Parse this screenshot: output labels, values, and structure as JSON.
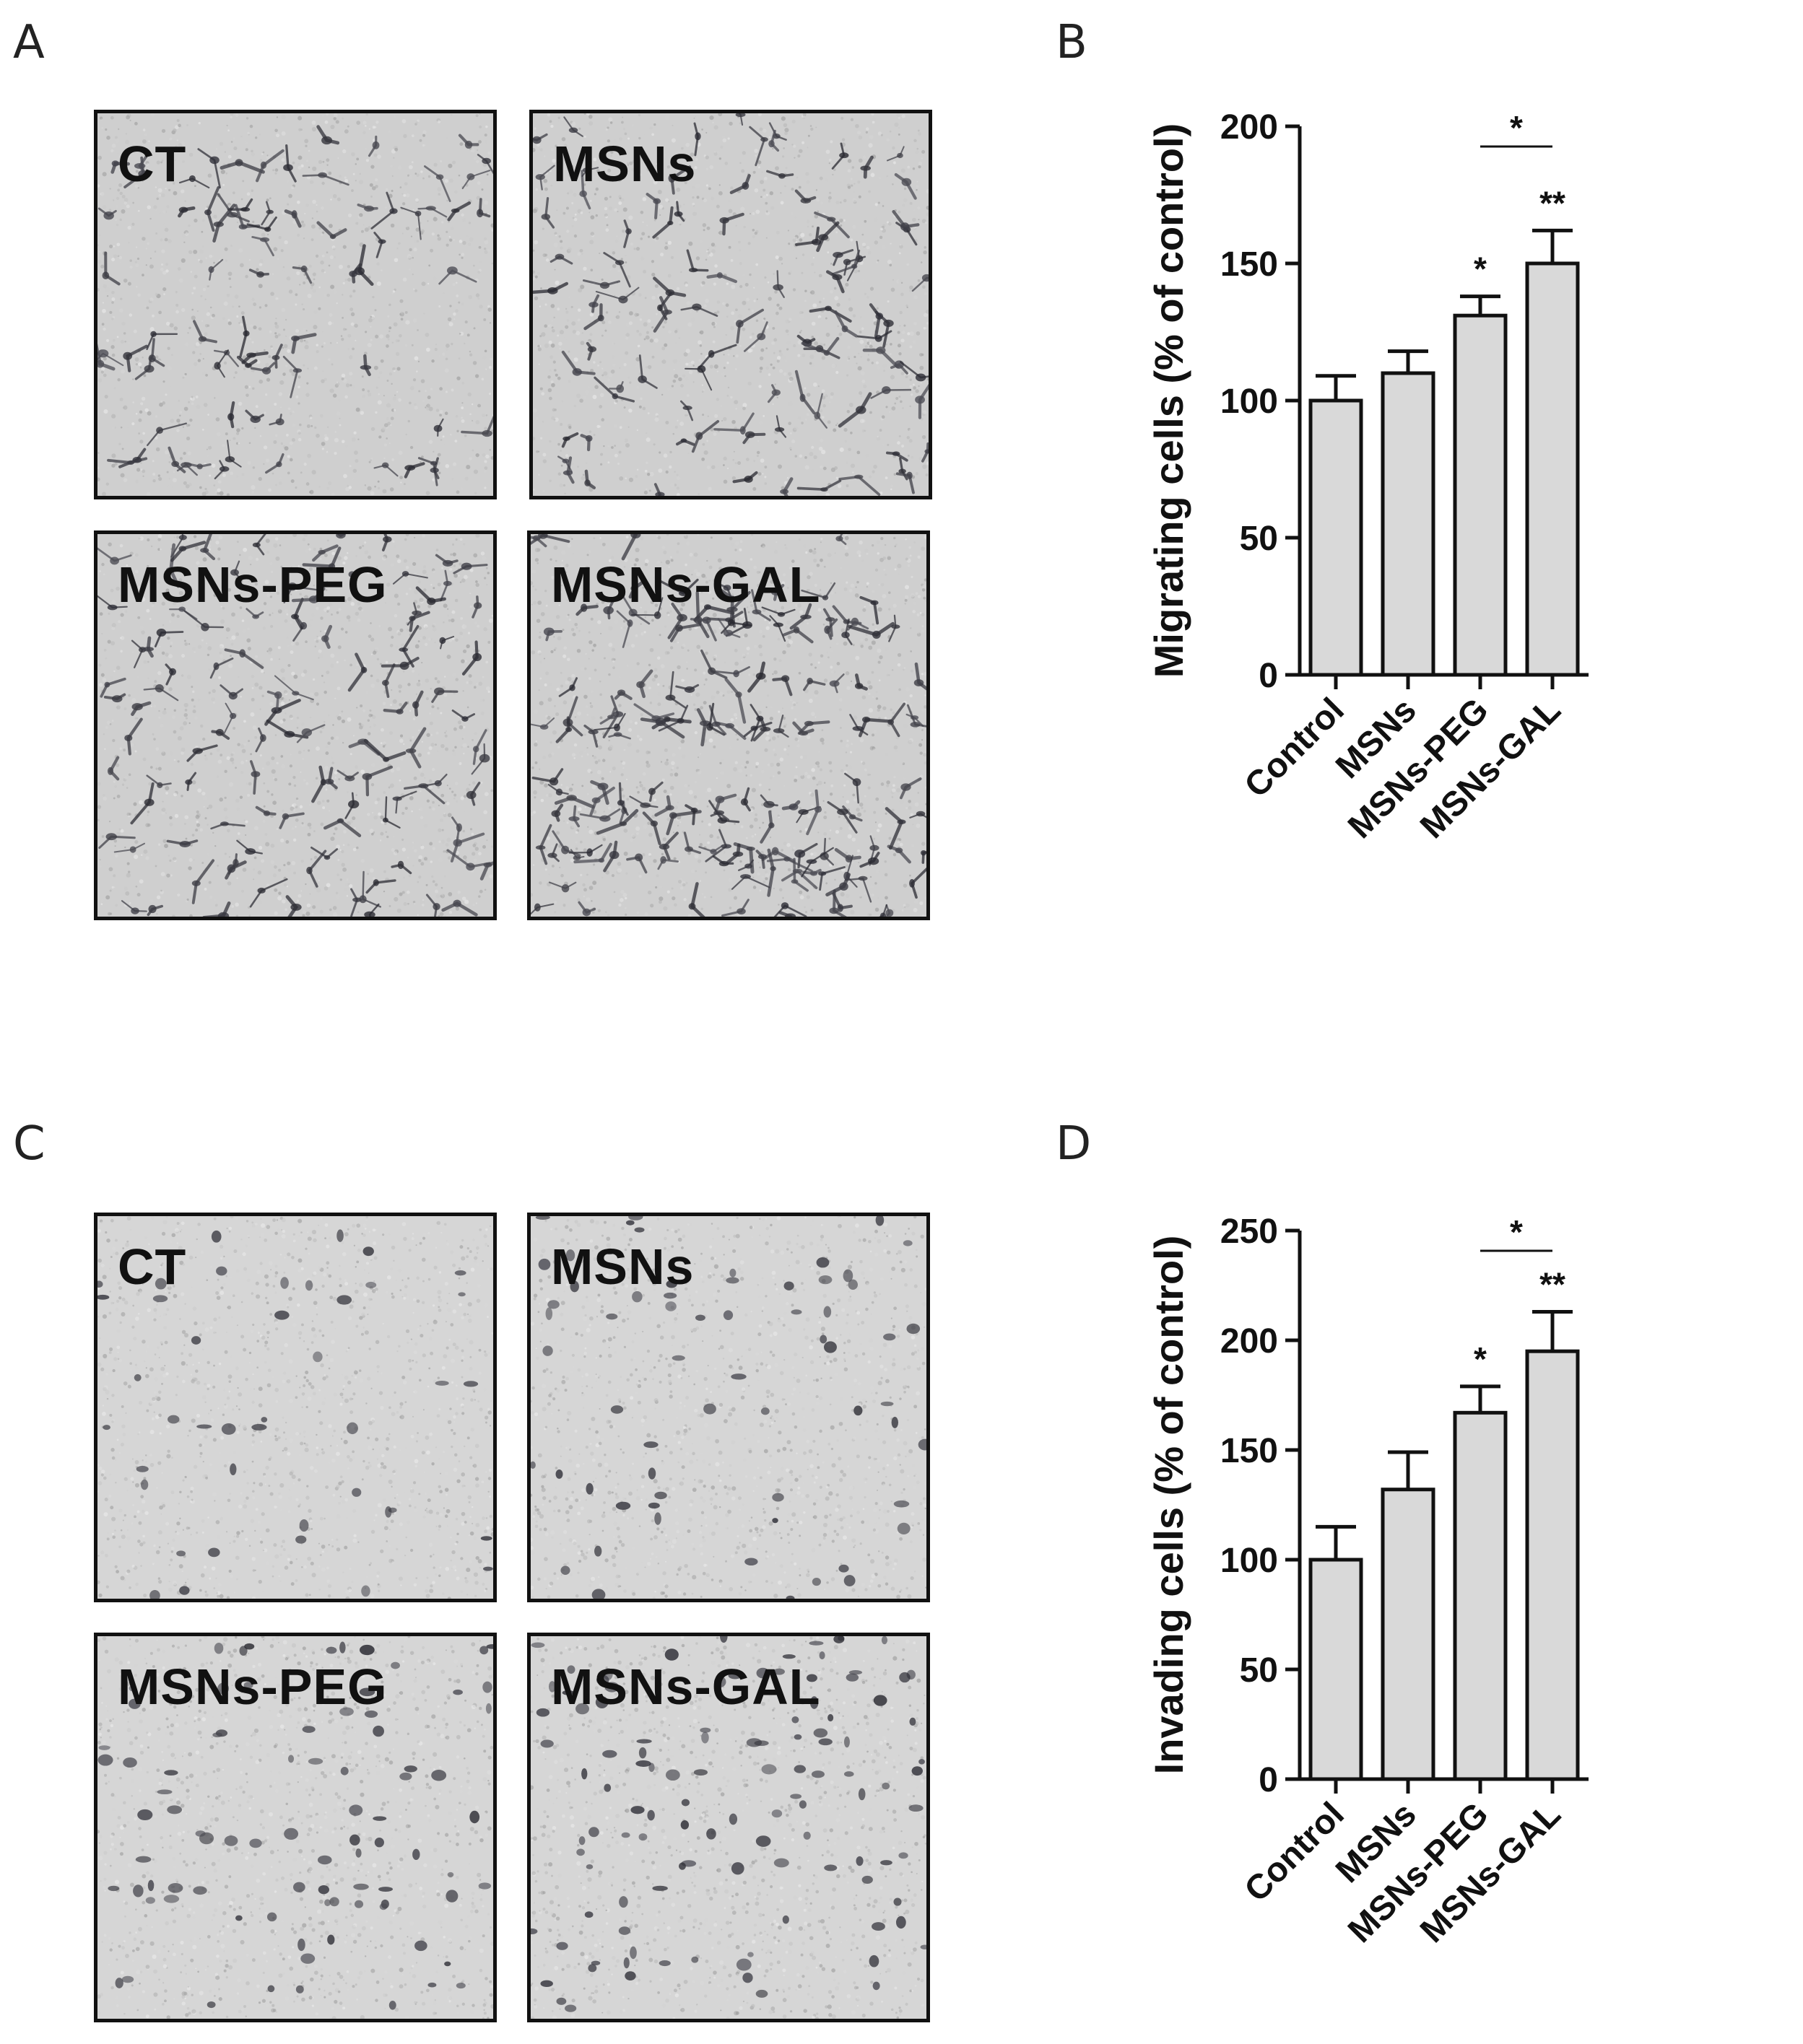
{
  "panels": {
    "A": {
      "letter": "A",
      "images": [
        "CT",
        "MSNs",
        "MSNs-PEG",
        "MSNs-GAL"
      ]
    },
    "B": {
      "letter": "B"
    },
    "C": {
      "letter": "C",
      "images": [
        "CT",
        "MSNs",
        "MSNs-PEG",
        "MSNs-GAL"
      ]
    },
    "D": {
      "letter": "D"
    }
  },
  "chart_data": [
    {
      "type": "bar",
      "panel": "B",
      "categories": [
        "Control",
        "MSNs",
        "MSNs-PEG",
        "MSNs-GAL"
      ],
      "values": [
        100,
        110,
        131,
        150
      ],
      "errors": [
        9,
        8,
        7,
        12
      ],
      "significance": [
        "",
        "",
        "*",
        "**"
      ],
      "bracket": {
        "from": "MSNs-PEG",
        "to": "MSNs-GAL",
        "label": "*"
      },
      "ylabel": "Migrating cells (% of control)",
      "ylim": [
        0,
        200
      ],
      "yticks": [
        0,
        50,
        100,
        150,
        200
      ],
      "bar_color": "#d9d9d9",
      "grid": false
    },
    {
      "type": "bar",
      "panel": "D",
      "categories": [
        "Control",
        "MSNs",
        "MSNs-PEG",
        "MSNs-GAL"
      ],
      "values": [
        100,
        132,
        167,
        195
      ],
      "errors": [
        15,
        17,
        12,
        18
      ],
      "significance": [
        "",
        "",
        "*",
        "**"
      ],
      "bracket": {
        "from": "MSNs-PEG",
        "to": "MSNs-GAL",
        "label": "*"
      },
      "ylabel": "Invading cells (% of control)",
      "ylim": [
        0,
        250
      ],
      "yticks": [
        0,
        50,
        100,
        150,
        200,
        250
      ],
      "bar_color": "#d9d9d9",
      "grid": false
    }
  ]
}
